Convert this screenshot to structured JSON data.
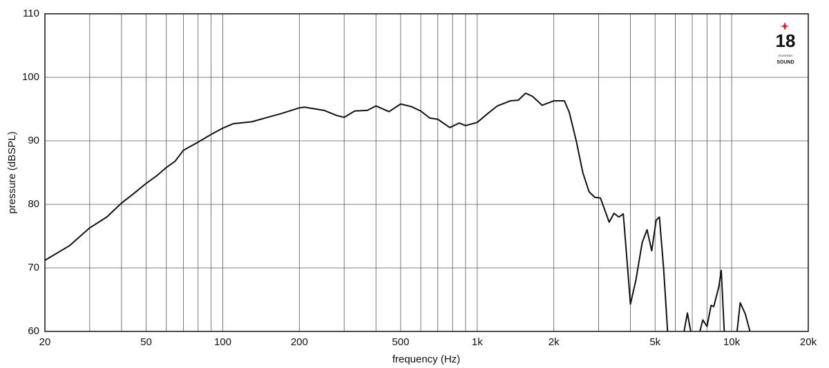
{
  "chart_data": {
    "type": "line",
    "x_label": "frequency (Hz)",
    "y_label": "pressure (dBSPL)",
    "log_x": true,
    "grid": true,
    "xlim": [
      20,
      20000
    ],
    "ylim": [
      60,
      110
    ],
    "xticks": [
      20,
      50,
      100,
      200,
      500,
      {
        "value": 1000,
        "label": "1k"
      },
      {
        "value": 2000,
        "label": "2k"
      },
      {
        "value": 5000,
        "label": "5k"
      },
      {
        "value": 10000,
        "label": "10k"
      },
      {
        "value": 20000,
        "label": "20k"
      }
    ],
    "xminor": [
      30,
      40,
      60,
      70,
      80,
      90,
      300,
      400,
      600,
      700,
      800,
      900,
      3000,
      4000,
      6000,
      7000,
      8000,
      9000
    ],
    "yticks": [
      60,
      70,
      80,
      90,
      100,
      110
    ],
    "logo": {
      "number": "18",
      "line1": "EIGHTEEN",
      "line2": "SOUND"
    },
    "series": [
      {
        "color": "#111111",
        "x": [
          20,
          25,
          30,
          35,
          40,
          45,
          50,
          55,
          60,
          65,
          70,
          80,
          90,
          100,
          110,
          130,
          150,
          170,
          200,
          210,
          250,
          280,
          300,
          330,
          370,
          400,
          450,
          500,
          550,
          600,
          650,
          700,
          780,
          850,
          900,
          1000,
          1100,
          1200,
          1350,
          1450,
          1550,
          1650,
          1800,
          2000,
          2200,
          2300,
          2450,
          2600,
          2750,
          2900,
          3050,
          3300,
          3450,
          3600,
          3750,
          3900,
          4000,
          4200,
          4450,
          4650,
          4850,
          5050,
          5200,
          5400,
          5600,
          null,
          6500,
          6700,
          6900,
          null,
          7500,
          7700,
          8000,
          8300,
          8500,
          8900,
          9100,
          9350,
          null,
          10500,
          10800,
          11300,
          11800
        ],
        "values": [
          71.2,
          73.5,
          76.3,
          78.0,
          80.2,
          81.8,
          83.3,
          84.5,
          85.8,
          86.8,
          88.5,
          89.8,
          91.0,
          92.0,
          92.7,
          93.0,
          93.7,
          94.3,
          95.2,
          95.3,
          94.8,
          94.0,
          93.7,
          94.7,
          94.8,
          95.5,
          94.6,
          95.8,
          95.4,
          94.7,
          93.6,
          93.4,
          92.1,
          92.8,
          92.4,
          92.9,
          94.3,
          95.5,
          96.3,
          96.4,
          97.5,
          97.0,
          95.6,
          96.3,
          96.3,
          94.5,
          90.0,
          85.0,
          82.0,
          81.1,
          81.0,
          77.2,
          78.6,
          78.0,
          78.5,
          70.0,
          64.3,
          68.0,
          74.0,
          76.0,
          72.7,
          77.5,
          78.0,
          70.0,
          60.0,
          null,
          60.0,
          62.9,
          60.0,
          null,
          60.0,
          61.8,
          60.8,
          64.1,
          63.9,
          67.0,
          69.6,
          60.0,
          null,
          60.0,
          64.5,
          62.8,
          60.0
        ]
      }
    ]
  }
}
